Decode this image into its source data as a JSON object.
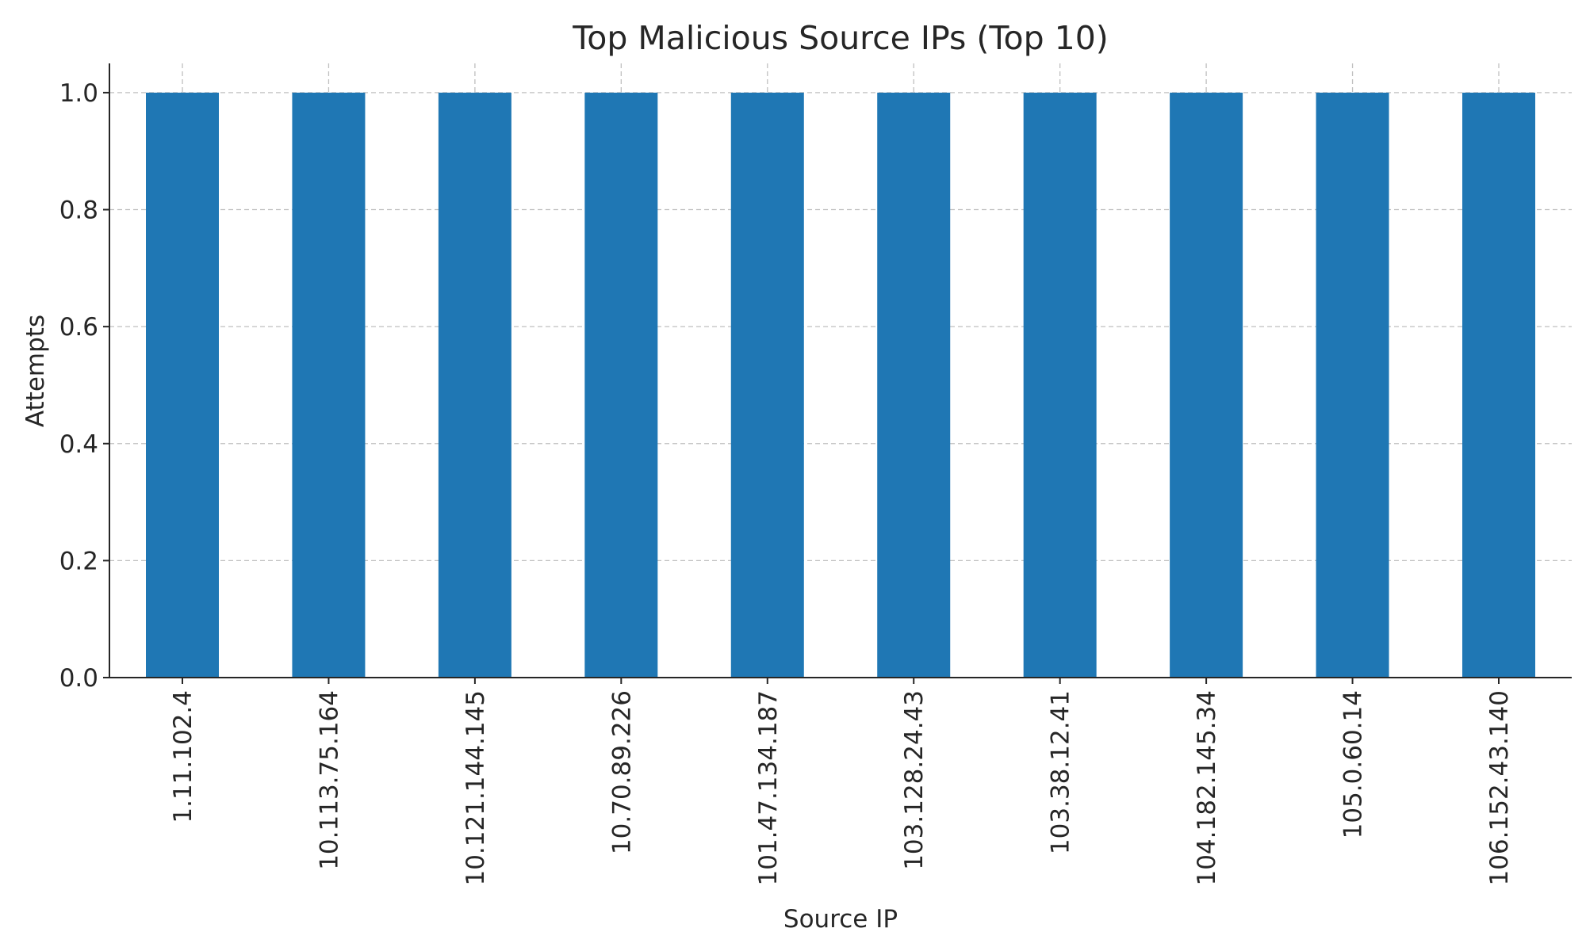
{
  "chart_data": {
    "type": "bar",
    "title": "Top Malicious Source IPs (Top 10)",
    "xlabel": "Source IP",
    "ylabel": "Attempts",
    "categories": [
      "1.11.102.4",
      "10.113.75.164",
      "10.121.144.145",
      "10.70.89.226",
      "101.47.134.187",
      "103.128.24.43",
      "103.38.12.41",
      "104.182.145.34",
      "105.0.60.14",
      "106.152.43.140"
    ],
    "values": [
      1,
      1,
      1,
      1,
      1,
      1,
      1,
      1,
      1,
      1
    ],
    "ylim": [
      0,
      1.05
    ],
    "yticks": [
      "0.0",
      "0.2",
      "0.4",
      "0.6",
      "0.8",
      "1.0"
    ],
    "grid": true,
    "colors": {
      "bar": "#1f77b4"
    }
  }
}
